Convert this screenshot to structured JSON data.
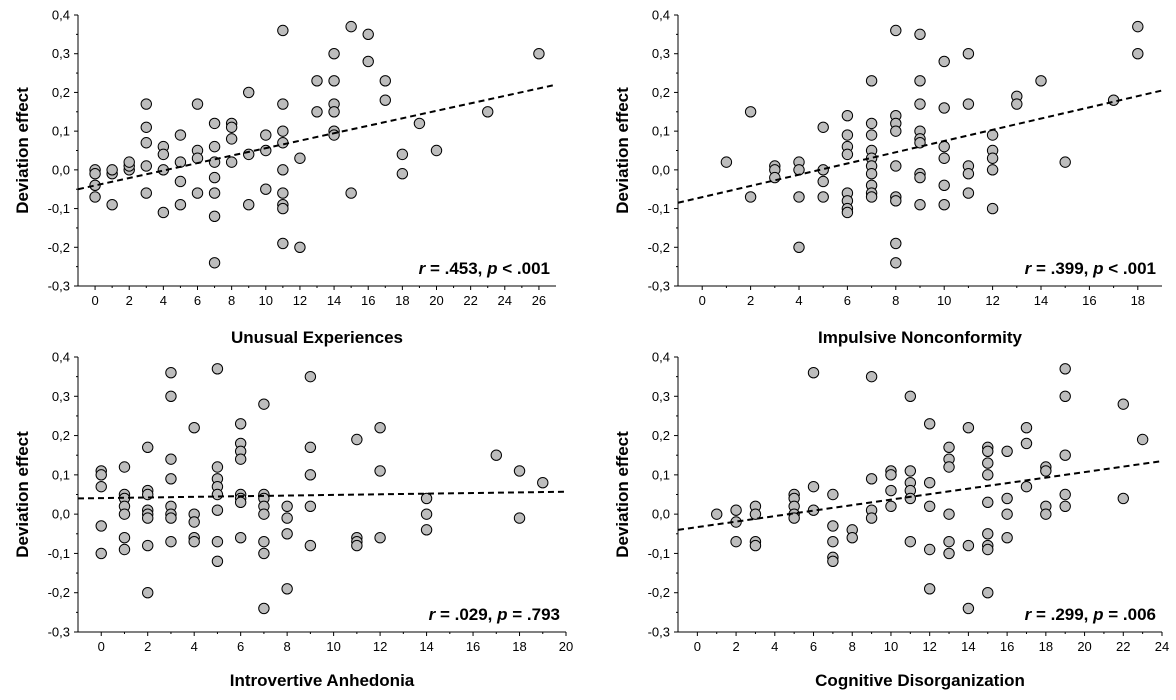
{
  "chart_data": [
    {
      "type": "scatter",
      "xlabel": "Unusual Experiences",
      "ylabel": "Deviation effect",
      "xlim": [
        -1,
        27
      ],
      "ylim": [
        -0.3,
        0.4
      ],
      "xticks": [
        0,
        2,
        4,
        6,
        8,
        10,
        12,
        14,
        16,
        18,
        20,
        22,
        24,
        26
      ],
      "yticks": [
        "0,4",
        "0,3",
        "0,2",
        "0,1",
        "0,0",
        "-0,1",
        "-0,2",
        "-0,3"
      ],
      "yticks_values": [
        0.4,
        0.3,
        0.2,
        0.1,
        0.0,
        -0.1,
        -0.2,
        -0.3
      ],
      "regression": {
        "x0": -1,
        "y0": -0.05,
        "x1": 27,
        "y1": 0.22
      },
      "stat": {
        "r_symbol": "r",
        "r_text": " = .453, ",
        "p_symbol": "p",
        "p_text": " < .001"
      },
      "points": [
        [
          0,
          0.0
        ],
        [
          0,
          -0.01
        ],
        [
          0,
          -0.04
        ],
        [
          0,
          -0.07
        ],
        [
          1,
          -0.01
        ],
        [
          1,
          0.0
        ],
        [
          1,
          -0.09
        ],
        [
          2,
          0.0
        ],
        [
          2,
          0.01
        ],
        [
          2,
          0.02
        ],
        [
          3,
          0.17
        ],
        [
          3,
          0.11
        ],
        [
          3,
          0.07
        ],
        [
          3,
          0.01
        ],
        [
          3,
          -0.06
        ],
        [
          4,
          0.06
        ],
        [
          4,
          0.04
        ],
        [
          4,
          0.0
        ],
        [
          4,
          -0.11
        ],
        [
          5,
          0.09
        ],
        [
          5,
          0.02
        ],
        [
          5,
          -0.03
        ],
        [
          5,
          -0.09
        ],
        [
          6,
          0.17
        ],
        [
          6,
          0.05
        ],
        [
          6,
          0.03
        ],
        [
          6,
          -0.06
        ],
        [
          7,
          0.12
        ],
        [
          7,
          0.06
        ],
        [
          7,
          0.02
        ],
        [
          7,
          -0.02
        ],
        [
          7,
          -0.06
        ],
        [
          7,
          -0.12
        ],
        [
          7,
          -0.24
        ],
        [
          8,
          0.12
        ],
        [
          8,
          0.11
        ],
        [
          8,
          0.08
        ],
        [
          8,
          0.02
        ],
        [
          9,
          0.2
        ],
        [
          9,
          0.04
        ],
        [
          9,
          -0.09
        ],
        [
          10,
          0.09
        ],
        [
          10,
          0.05
        ],
        [
          10,
          -0.05
        ],
        [
          11,
          0.36
        ],
        [
          11,
          0.17
        ],
        [
          11,
          0.1
        ],
        [
          11,
          0.07
        ],
        [
          11,
          0.0
        ],
        [
          11,
          -0.06
        ],
        [
          11,
          -0.09
        ],
        [
          11,
          -0.1
        ],
        [
          11,
          -0.19
        ],
        [
          12,
          0.03
        ],
        [
          12,
          -0.2
        ],
        [
          13,
          0.23
        ],
        [
          13,
          0.15
        ],
        [
          14,
          0.3
        ],
        [
          14,
          0.23
        ],
        [
          14,
          0.17
        ],
        [
          14,
          0.15
        ],
        [
          14,
          0.1
        ],
        [
          14,
          0.09
        ],
        [
          15,
          0.37
        ],
        [
          15,
          -0.06
        ],
        [
          16,
          0.35
        ],
        [
          16,
          0.28
        ],
        [
          17,
          0.23
        ],
        [
          17,
          0.18
        ],
        [
          18,
          0.04
        ],
        [
          18,
          -0.01
        ],
        [
          19,
          0.12
        ],
        [
          20,
          0.05
        ],
        [
          23,
          0.15
        ],
        [
          26,
          0.3
        ]
      ]
    },
    {
      "type": "scatter",
      "xlabel": "Impulsive Nonconformity",
      "ylabel": "Deviation effect",
      "xlim": [
        -1,
        19
      ],
      "ylim": [
        -0.3,
        0.4
      ],
      "xticks": [
        0,
        2,
        4,
        6,
        8,
        10,
        12,
        14,
        16,
        18
      ],
      "yticks": [
        "0,4",
        "0,3",
        "0,2",
        "0,1",
        "0,0",
        "-0,1",
        "-0,2",
        "-0,3"
      ],
      "yticks_values": [
        0.4,
        0.3,
        0.2,
        0.1,
        0.0,
        -0.1,
        -0.2,
        -0.3
      ],
      "regression": {
        "x0": -1,
        "y0": -0.085,
        "x1": 19,
        "y1": 0.205
      },
      "stat": {
        "r_symbol": "r",
        "r_text": " = .399, ",
        "p_symbol": "p",
        "p_text": " < .001"
      },
      "points": [
        [
          1,
          0.02
        ],
        [
          2,
          0.15
        ],
        [
          2,
          -0.07
        ],
        [
          3,
          0.01
        ],
        [
          3,
          0.0
        ],
        [
          3,
          -0.02
        ],
        [
          4,
          0.02
        ],
        [
          4,
          0.0
        ],
        [
          4,
          -0.07
        ],
        [
          4,
          -0.2
        ],
        [
          5,
          0.11
        ],
        [
          5,
          0.0
        ],
        [
          5,
          -0.03
        ],
        [
          5,
          -0.07
        ],
        [
          6,
          0.14
        ],
        [
          6,
          0.09
        ],
        [
          6,
          0.06
        ],
        [
          6,
          0.04
        ],
        [
          6,
          -0.06
        ],
        [
          6,
          -0.08
        ],
        [
          6,
          -0.1
        ],
        [
          6,
          -0.11
        ],
        [
          7,
          0.23
        ],
        [
          7,
          0.12
        ],
        [
          7,
          0.09
        ],
        [
          7,
          0.05
        ],
        [
          7,
          0.03
        ],
        [
          7,
          0.01
        ],
        [
          7,
          -0.01
        ],
        [
          7,
          -0.04
        ],
        [
          7,
          -0.06
        ],
        [
          7,
          -0.07
        ],
        [
          8,
          0.36
        ],
        [
          8,
          0.14
        ],
        [
          8,
          0.12
        ],
        [
          8,
          0.1
        ],
        [
          8,
          0.01
        ],
        [
          8,
          -0.07
        ],
        [
          8,
          -0.08
        ],
        [
          8,
          -0.19
        ],
        [
          8,
          -0.24
        ],
        [
          9,
          0.35
        ],
        [
          9,
          0.23
        ],
        [
          9,
          0.17
        ],
        [
          9,
          0.1
        ],
        [
          9,
          0.08
        ],
        [
          9,
          0.07
        ],
        [
          9,
          -0.01
        ],
        [
          9,
          -0.02
        ],
        [
          9,
          -0.09
        ],
        [
          10,
          0.28
        ],
        [
          10,
          0.16
        ],
        [
          10,
          0.06
        ],
        [
          10,
          0.03
        ],
        [
          10,
          -0.04
        ],
        [
          10,
          -0.09
        ],
        [
          11,
          0.3
        ],
        [
          11,
          0.17
        ],
        [
          11,
          0.01
        ],
        [
          11,
          -0.01
        ],
        [
          11,
          -0.06
        ],
        [
          12,
          0.09
        ],
        [
          12,
          0.05
        ],
        [
          12,
          0.03
        ],
        [
          12,
          0.0
        ],
        [
          12,
          -0.1
        ],
        [
          13,
          0.19
        ],
        [
          13,
          0.17
        ],
        [
          14,
          0.23
        ],
        [
          15,
          0.02
        ],
        [
          17,
          0.18
        ],
        [
          18,
          0.37
        ],
        [
          18,
          0.3
        ]
      ]
    },
    {
      "type": "scatter",
      "xlabel": "Introvertive Anhedonia",
      "ylabel": "Deviation effect",
      "xlim": [
        -1,
        20
      ],
      "ylim": [
        -0.3,
        0.4
      ],
      "xticks": [
        0,
        2,
        4,
        6,
        8,
        10,
        12,
        14,
        16,
        18,
        20
      ],
      "yticks": [
        "0,4",
        "0,3",
        "0,2",
        "0,1",
        "0,0",
        "-0,1",
        "-0,2",
        "-0,3"
      ],
      "yticks_values": [
        0.4,
        0.3,
        0.2,
        0.1,
        0.0,
        -0.1,
        -0.2,
        -0.3
      ],
      "regression": {
        "x0": -1,
        "y0": 0.04,
        "x1": 20,
        "y1": 0.057
      },
      "stat": {
        "r_symbol": "r",
        "r_text": " = .029, ",
        "p_symbol": "p",
        "p_text": " = .793"
      },
      "points": [
        [
          0,
          0.11
        ],
        [
          0,
          0.1
        ],
        [
          0,
          0.07
        ],
        [
          0,
          -0.03
        ],
        [
          0,
          -0.1
        ],
        [
          1,
          0.12
        ],
        [
          1,
          0.05
        ],
        [
          1,
          0.04
        ],
        [
          1,
          0.02
        ],
        [
          1,
          0.0
        ],
        [
          1,
          -0.06
        ],
        [
          1,
          -0.09
        ],
        [
          2,
          0.17
        ],
        [
          2,
          0.06
        ],
        [
          2,
          0.05
        ],
        [
          2,
          0.01
        ],
        [
          2,
          0.0
        ],
        [
          2,
          -0.01
        ],
        [
          2,
          -0.08
        ],
        [
          2,
          -0.2
        ],
        [
          3,
          0.36
        ],
        [
          3,
          0.3
        ],
        [
          3,
          0.14
        ],
        [
          3,
          0.09
        ],
        [
          3,
          0.02
        ],
        [
          3,
          0.0
        ],
        [
          3,
          -0.01
        ],
        [
          3,
          -0.07
        ],
        [
          4,
          0.22
        ],
        [
          4,
          0.0
        ],
        [
          4,
          -0.02
        ],
        [
          4,
          -0.06
        ],
        [
          4,
          -0.07
        ],
        [
          5,
          0.37
        ],
        [
          5,
          0.12
        ],
        [
          5,
          0.09
        ],
        [
          5,
          0.07
        ],
        [
          5,
          0.05
        ],
        [
          5,
          0.01
        ],
        [
          5,
          -0.07
        ],
        [
          5,
          -0.12
        ],
        [
          6,
          0.23
        ],
        [
          6,
          0.18
        ],
        [
          6,
          0.16
        ],
        [
          6,
          0.14
        ],
        [
          6,
          0.05
        ],
        [
          6,
          0.04
        ],
        [
          6,
          0.03
        ],
        [
          6,
          -0.06
        ],
        [
          7,
          0.28
        ],
        [
          7,
          0.05
        ],
        [
          7,
          0.04
        ],
        [
          7,
          0.02
        ],
        [
          7,
          0.0
        ],
        [
          7,
          -0.07
        ],
        [
          7,
          -0.1
        ],
        [
          7,
          -0.24
        ],
        [
          8,
          0.02
        ],
        [
          8,
          -0.01
        ],
        [
          8,
          -0.05
        ],
        [
          8,
          -0.19
        ],
        [
          9,
          0.35
        ],
        [
          9,
          0.17
        ],
        [
          9,
          0.1
        ],
        [
          9,
          0.02
        ],
        [
          9,
          -0.08
        ],
        [
          11,
          0.19
        ],
        [
          11,
          -0.06
        ],
        [
          11,
          -0.07
        ],
        [
          11,
          -0.08
        ],
        [
          12,
          0.22
        ],
        [
          12,
          0.11
        ],
        [
          12,
          -0.06
        ],
        [
          14,
          0.04
        ],
        [
          14,
          0.0
        ],
        [
          14,
          -0.04
        ],
        [
          17,
          0.15
        ],
        [
          18,
          0.11
        ],
        [
          18,
          -0.01
        ],
        [
          19,
          0.08
        ]
      ]
    },
    {
      "type": "scatter",
      "xlabel": "Cognitive Disorganization",
      "ylabel": "Deviation effect",
      "xlim": [
        -1,
        24
      ],
      "ylim": [
        -0.3,
        0.4
      ],
      "xticks": [
        0,
        2,
        4,
        6,
        8,
        10,
        12,
        14,
        16,
        18,
        20,
        22,
        24
      ],
      "yticks": [
        "0,4",
        "0,3",
        "0,2",
        "0,1",
        "0,0",
        "-0,1",
        "-0,2",
        "-0,3"
      ],
      "yticks_values": [
        0.4,
        0.3,
        0.2,
        0.1,
        0.0,
        -0.1,
        -0.2,
        -0.3
      ],
      "regression": {
        "x0": -1,
        "y0": -0.04,
        "x1": 24,
        "y1": 0.135
      },
      "stat": {
        "r_symbol": "r",
        "r_text": " = .299, ",
        "p_symbol": "p",
        "p_text": " = .006"
      },
      "points": [
        [
          1,
          0.0
        ],
        [
          2,
          0.01
        ],
        [
          2,
          -0.02
        ],
        [
          2,
          -0.07
        ],
        [
          3,
          0.02
        ],
        [
          3,
          0.0
        ],
        [
          3,
          -0.07
        ],
        [
          3,
          -0.08
        ],
        [
          5,
          0.05
        ],
        [
          5,
          0.04
        ],
        [
          5,
          0.02
        ],
        [
          5,
          0.0
        ],
        [
          5,
          -0.01
        ],
        [
          6,
          0.36
        ],
        [
          6,
          0.07
        ],
        [
          6,
          0.01
        ],
        [
          7,
          0.05
        ],
        [
          7,
          -0.03
        ],
        [
          7,
          -0.07
        ],
        [
          7,
          -0.11
        ],
        [
          7,
          -0.12
        ],
        [
          8,
          -0.04
        ],
        [
          8,
          -0.06
        ],
        [
          9,
          0.35
        ],
        [
          9,
          0.09
        ],
        [
          9,
          0.01
        ],
        [
          9,
          -0.01
        ],
        [
          10,
          0.11
        ],
        [
          10,
          0.1
        ],
        [
          10,
          0.06
        ],
        [
          10,
          0.02
        ],
        [
          11,
          0.3
        ],
        [
          11,
          0.11
        ],
        [
          11,
          0.08
        ],
        [
          11,
          0.06
        ],
        [
          11,
          0.04
        ],
        [
          11,
          -0.07
        ],
        [
          12,
          0.23
        ],
        [
          12,
          0.08
        ],
        [
          12,
          0.02
        ],
        [
          12,
          -0.09
        ],
        [
          12,
          -0.19
        ],
        [
          13,
          0.17
        ],
        [
          13,
          0.14
        ],
        [
          13,
          0.12
        ],
        [
          13,
          0.0
        ],
        [
          13,
          -0.07
        ],
        [
          13,
          -0.1
        ],
        [
          14,
          0.22
        ],
        [
          14,
          -0.08
        ],
        [
          14,
          -0.24
        ],
        [
          15,
          0.17
        ],
        [
          15,
          0.16
        ],
        [
          15,
          0.13
        ],
        [
          15,
          0.1
        ],
        [
          15,
          0.03
        ],
        [
          15,
          -0.05
        ],
        [
          15,
          -0.08
        ],
        [
          15,
          -0.09
        ],
        [
          15,
          -0.2
        ],
        [
          16,
          0.16
        ],
        [
          16,
          0.04
        ],
        [
          16,
          0.0
        ],
        [
          16,
          -0.06
        ],
        [
          17,
          0.22
        ],
        [
          17,
          0.18
        ],
        [
          17,
          0.07
        ],
        [
          18,
          0.12
        ],
        [
          18,
          0.11
        ],
        [
          18,
          0.02
        ],
        [
          18,
          0.0
        ],
        [
          19,
          0.37
        ],
        [
          19,
          0.3
        ],
        [
          19,
          0.15
        ],
        [
          19,
          0.05
        ],
        [
          19,
          0.02
        ],
        [
          22,
          0.28
        ],
        [
          22,
          0.04
        ],
        [
          23,
          0.19
        ]
      ]
    }
  ]
}
